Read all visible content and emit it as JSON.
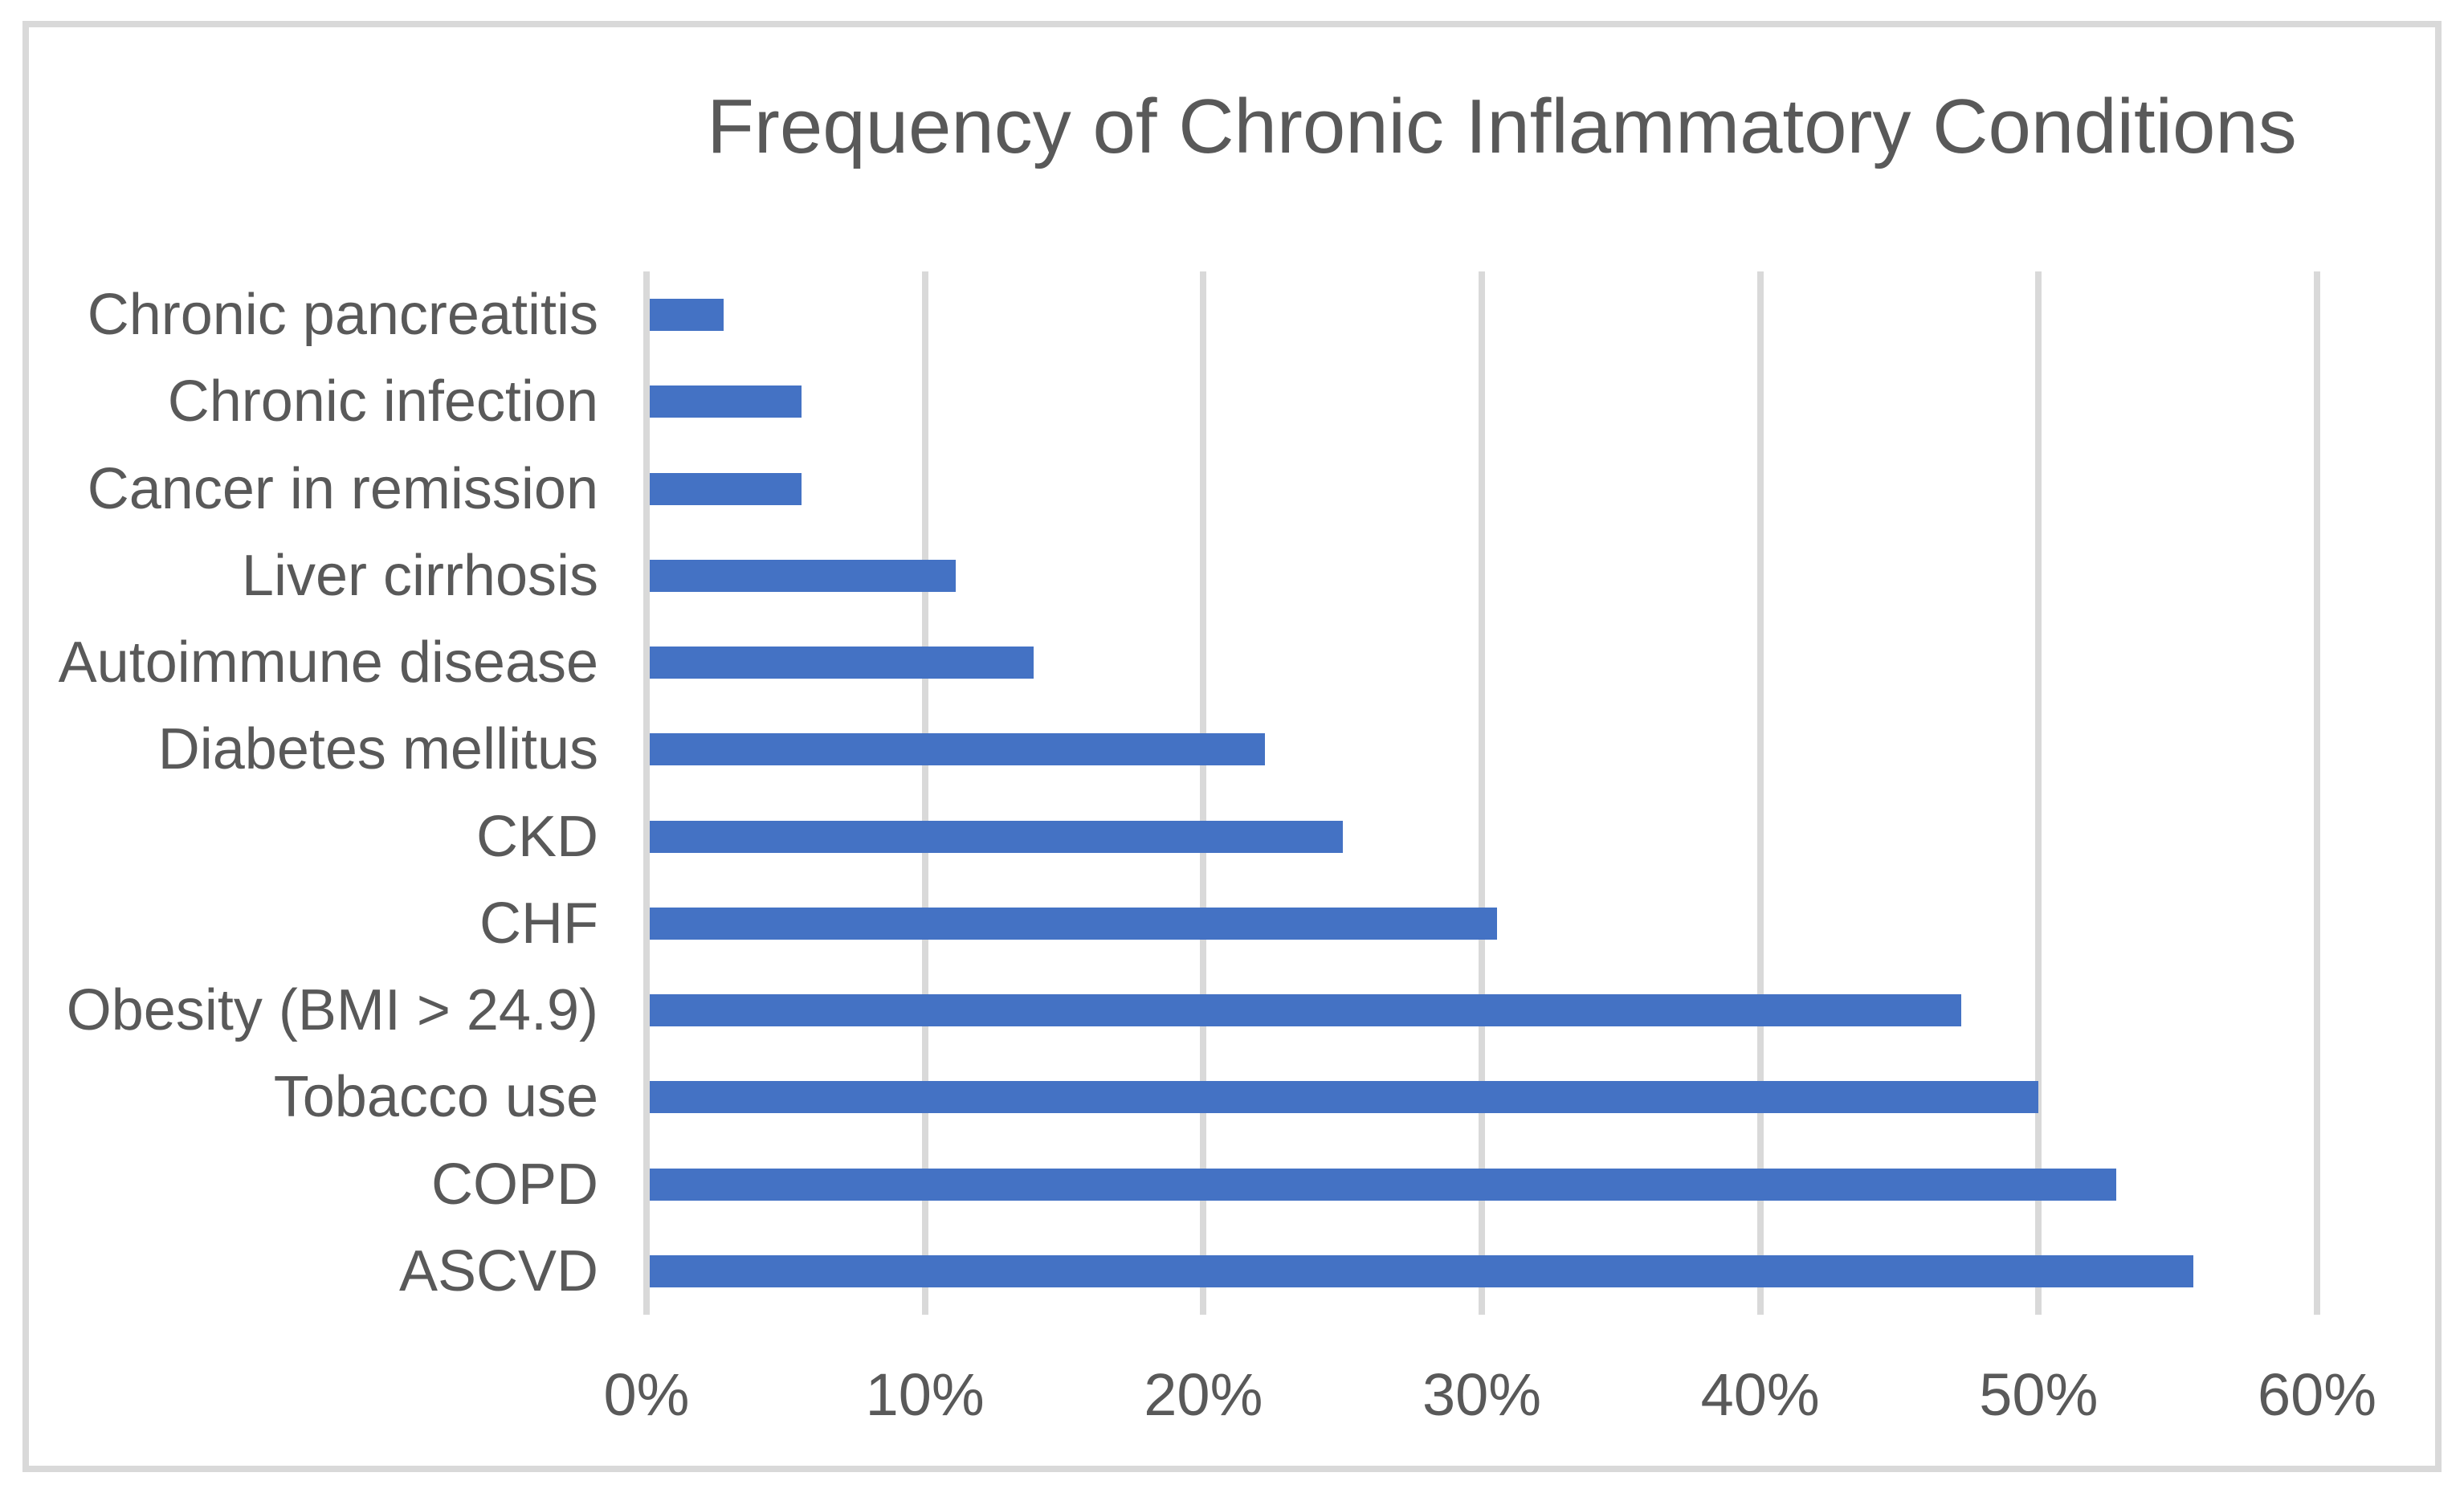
{
  "chart_data": {
    "type": "bar",
    "orientation": "horizontal",
    "title": "Frequency of Chronic Inflammatory Conditions",
    "categories_top_to_bottom": [
      "Chronic pancreatitis",
      "Chronic infection",
      "Cancer in remission",
      "Liver cirrhosis",
      "Autoimmune disease",
      "Diabetes mellitus",
      "CKD",
      "CHF",
      "Obesity (BMI > 24.9)",
      "Tobacco use",
      "COPD",
      "ASCVD"
    ],
    "values_percent": [
      2.78,
      5.56,
      5.56,
      11.11,
      13.89,
      22.22,
      25.0,
      30.56,
      47.22,
      50.0,
      52.78,
      55.56
    ],
    "xlabel": "",
    "ylabel": "",
    "x_axis": {
      "min": 0,
      "max": 60,
      "tick_step": 10,
      "tick_labels": [
        "0%",
        "10%",
        "20%",
        "30%",
        "40%",
        "50%",
        "60%"
      ]
    },
    "grid": true,
    "legend": false,
    "colors": {
      "bar": "#4472C4",
      "gridline": "#D9D9D9",
      "text": "#595959",
      "frame_border": "#D9D9D9",
      "background": "#FFFFFF"
    }
  }
}
